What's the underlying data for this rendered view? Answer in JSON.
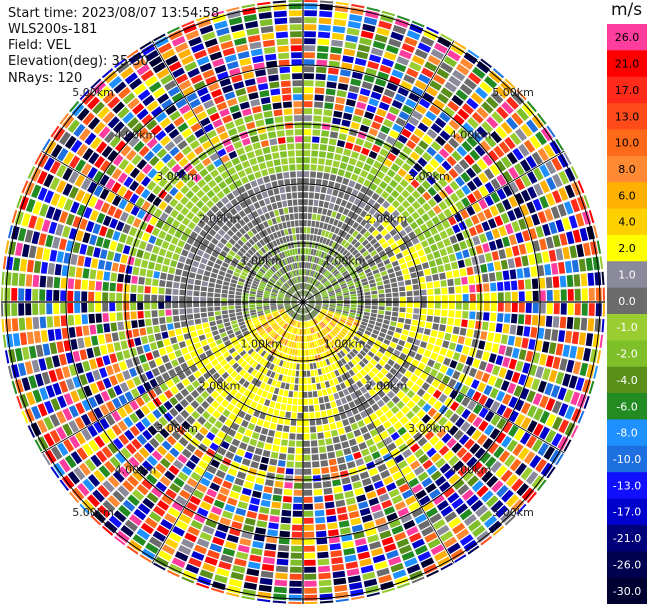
{
  "header": {
    "start_time": "Start time: 2023/08/07 13:54:58",
    "instrument": "WLS200s-181",
    "field": "Field: VEL",
    "elevation": "Elevation(deg): 35.30",
    "nrays": "NRays: 120"
  },
  "colorbar": {
    "title": "m/s",
    "levels": [
      {
        "label": "26.0",
        "color": "#ff3d9e"
      },
      {
        "label": "21.0",
        "color": "#ff0000"
      },
      {
        "label": "17.0",
        "color": "#ff2a1a"
      },
      {
        "label": "13.0",
        "color": "#ff4a1a"
      },
      {
        "label": "10.0",
        "color": "#ff6a1a"
      },
      {
        "label": "8.0",
        "color": "#ff8a33"
      },
      {
        "label": "6.0",
        "color": "#ffb000"
      },
      {
        "label": "4.0",
        "color": "#ffd000"
      },
      {
        "label": "2.0",
        "color": "#ffff00"
      },
      {
        "label": "1.0",
        "color": "#8a8a9a"
      },
      {
        "label": "0.0",
        "color": "#6b6b6b"
      },
      {
        "label": "-1.0",
        "color": "#9acd32"
      },
      {
        "label": "-2.0",
        "color": "#7fbf2a"
      },
      {
        "label": "-4.0",
        "color": "#5a8f1a"
      },
      {
        "label": "-6.0",
        "color": "#228b22"
      },
      {
        "label": "-8.0",
        "color": "#1e90ff"
      },
      {
        "label": "-10.0",
        "color": "#1e6fe0"
      },
      {
        "label": "-13.0",
        "color": "#1010ff"
      },
      {
        "label": "-17.0",
        "color": "#0000cc"
      },
      {
        "label": "-21.0",
        "color": "#00007a"
      },
      {
        "label": "-26.0",
        "color": "#000050"
      },
      {
        "label": "-30.0",
        "color": "#000030"
      }
    ]
  },
  "range_rings": [
    {
      "label": "1.00km"
    },
    {
      "label": "2.00km"
    },
    {
      "label": "3.00km"
    },
    {
      "label": "4.00km"
    },
    {
      "label": "5.00km"
    }
  ]
}
